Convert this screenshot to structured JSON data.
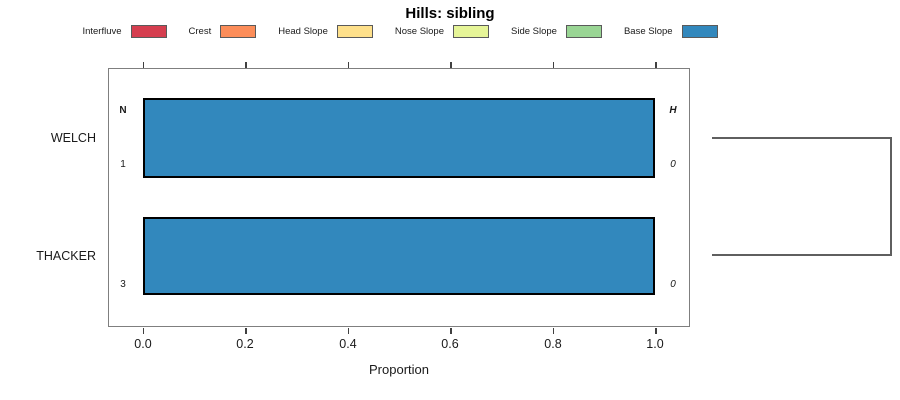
{
  "chart_data": {
    "type": "bar",
    "orientation": "horizontal",
    "title": "Hills: sibling",
    "xlabel": "Proportion",
    "xlim": [
      0,
      1
    ],
    "xtick_labels": [
      "0.0",
      "0.2",
      "0.4",
      "0.6",
      "0.8",
      "1.0"
    ],
    "categories": [
      "WELCH",
      "THACKER"
    ],
    "legend": {
      "position": "top",
      "entries": [
        {
          "label": "Interfluve",
          "color": "#D53E4F"
        },
        {
          "label": "Crest",
          "color": "#FC8D59"
        },
        {
          "label": "Head Slope",
          "color": "#FEE08B"
        },
        {
          "label": "Nose Slope",
          "color": "#E6F598"
        },
        {
          "label": "Side Slope",
          "color": "#99D594"
        },
        {
          "label": "Base Slope",
          "color": "#3288BD"
        }
      ]
    },
    "series": [
      {
        "name": "Base Slope",
        "color": "#3288BD",
        "values": [
          1.0,
          1.0
        ]
      }
    ],
    "row_annotations": {
      "header_left": "N",
      "header_right": "H",
      "rows": [
        {
          "category": "WELCH",
          "n": "1",
          "h": "0"
        },
        {
          "category": "THACKER",
          "n": "3",
          "h": "0"
        }
      ]
    },
    "dendrogram": {
      "present": true,
      "joined": [
        "WELCH",
        "THACKER"
      ]
    },
    "colors": {
      "bar_fill": "#3288BD",
      "bar_border": "#000000",
      "frame": "#7f7f7f",
      "dendrogram": "#5f5f5f"
    },
    "grid": false
  }
}
